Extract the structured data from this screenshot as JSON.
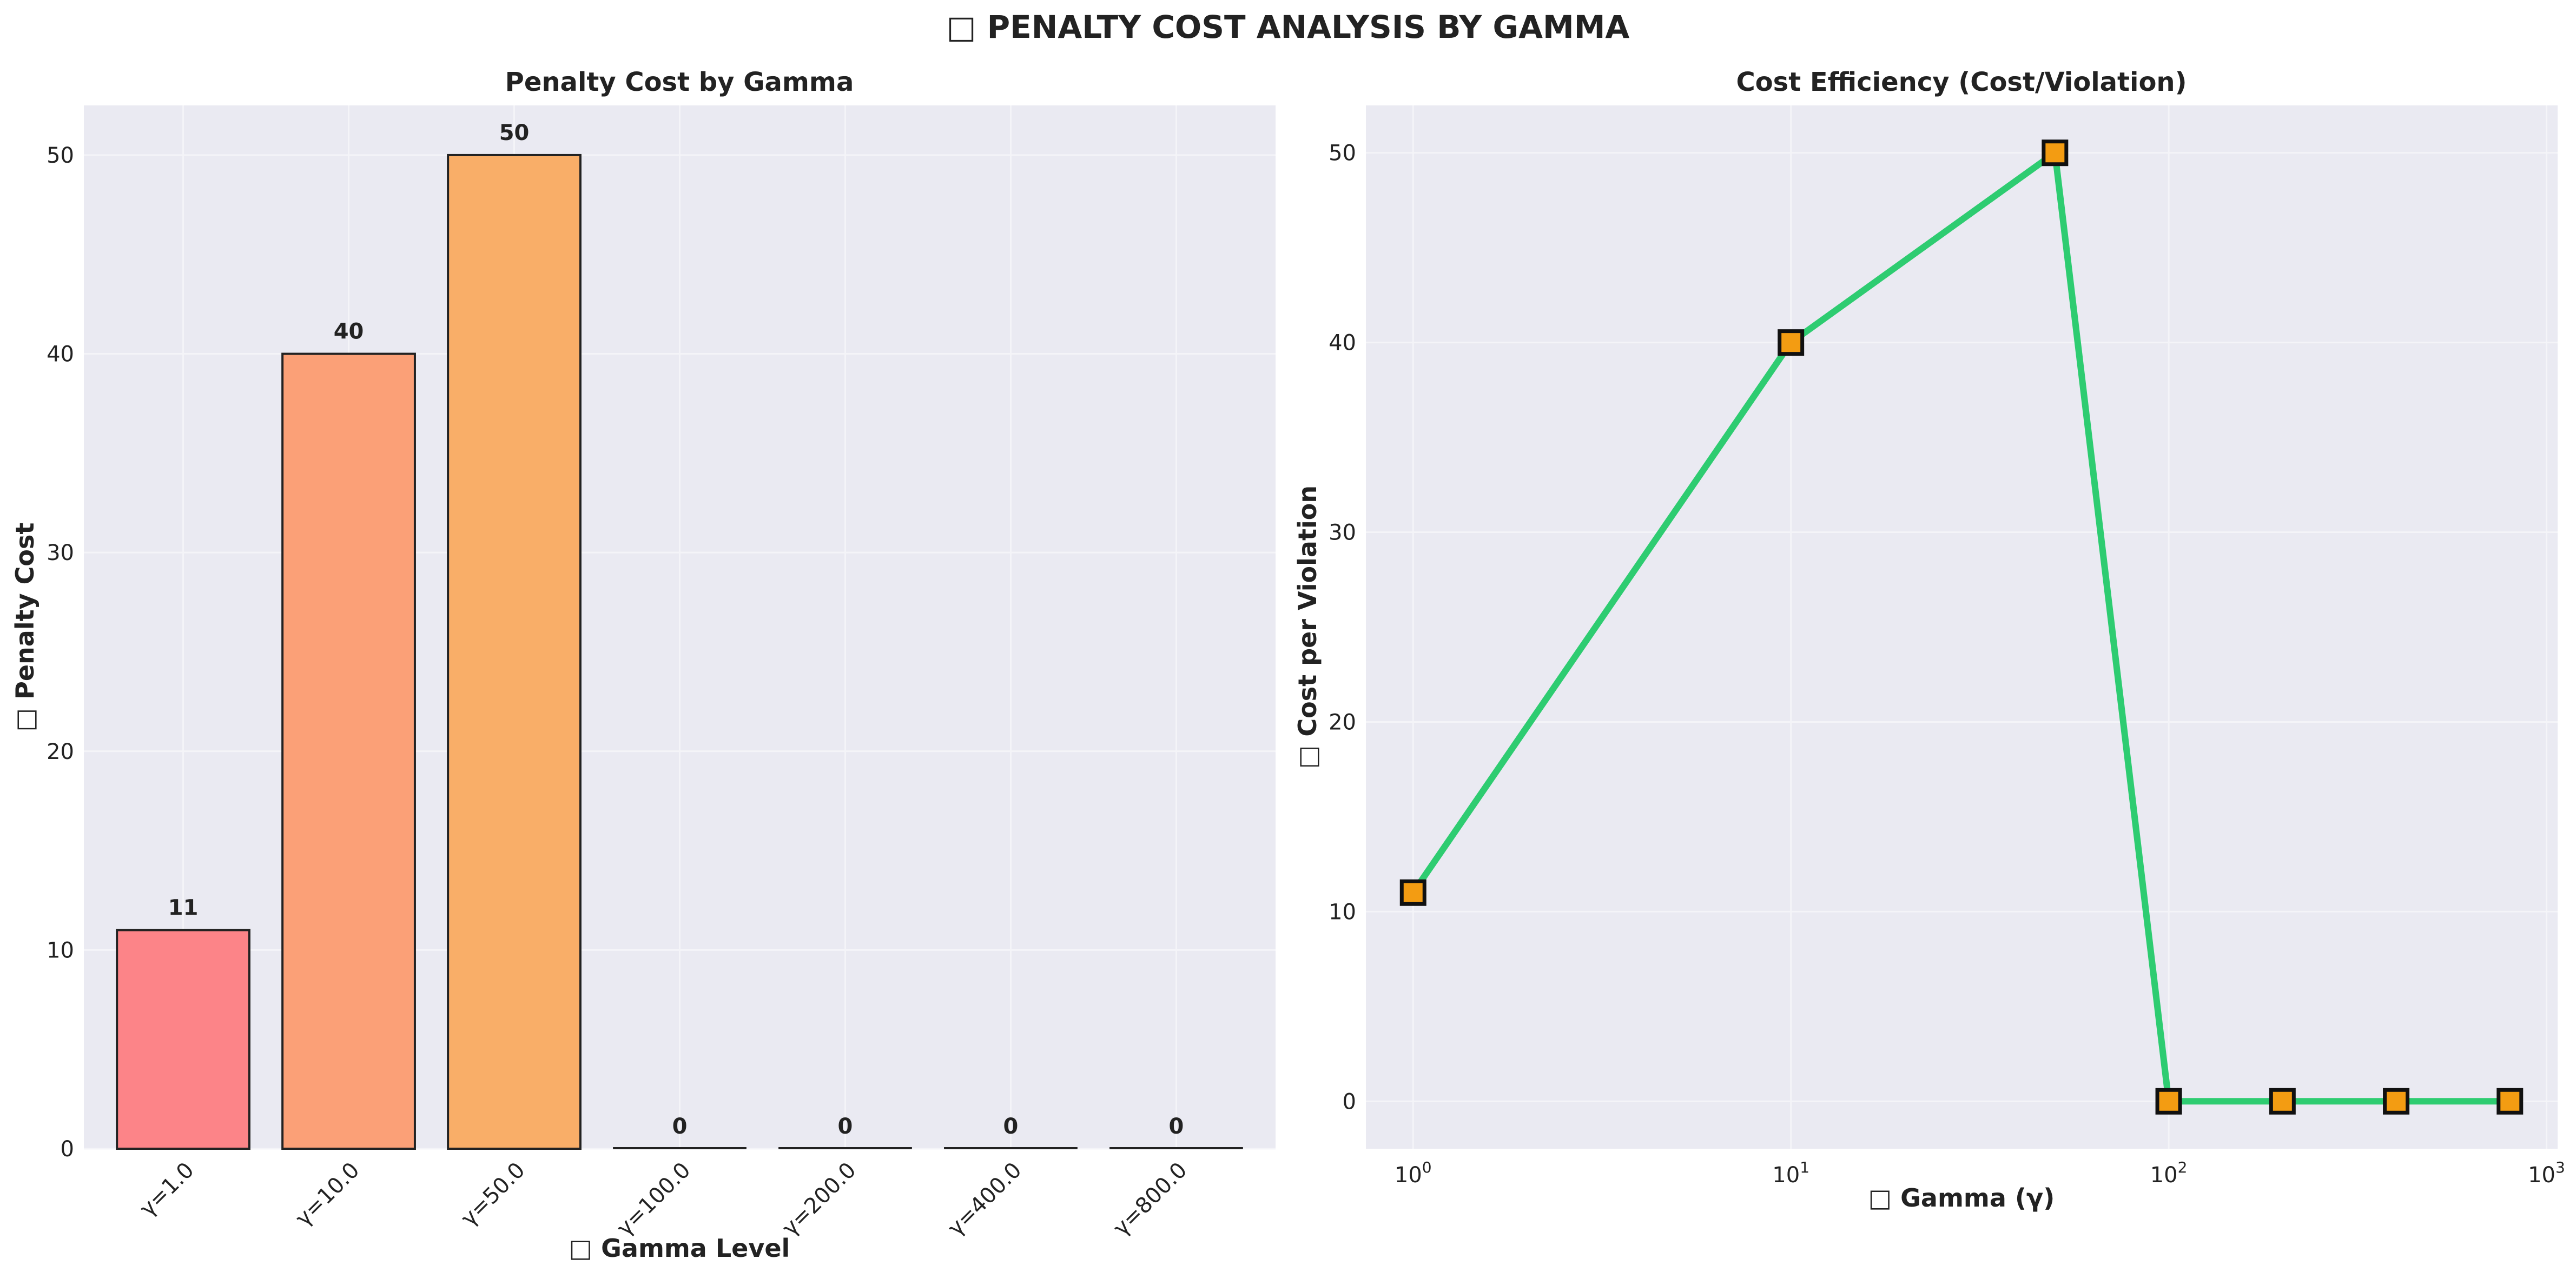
{
  "figure": {
    "title": "□ PENALTY COST ANALYSIS BY GAMMA",
    "background": "#ffffff",
    "panel_background": "#eaeaf2",
    "grid_color": "#f4f4f8",
    "text_color": "#222222"
  },
  "chart_data": [
    {
      "type": "bar",
      "title": "Penalty Cost by Gamma",
      "xlabel": "□ Gamma Level",
      "ylabel": "□ Penalty Cost",
      "categories": [
        "γ=1.0",
        "γ=10.0",
        "γ=50.0",
        "γ=100.0",
        "γ=200.0",
        "γ=400.0",
        "γ=800.0"
      ],
      "values": [
        11,
        40,
        50,
        0,
        0,
        0,
        0
      ],
      "data_labels": [
        "11",
        "40",
        "50",
        "0",
        "0",
        "0",
        "0"
      ],
      "bar_colors": [
        "#fc8488",
        "#fba077",
        "#f9ae68",
        "#f9ae68",
        "#f9ae68",
        "#f9ae68",
        "#f9ae68"
      ],
      "bar_edge_color": "#222222",
      "ylim": [
        0,
        52.5
      ],
      "yticks": [
        0,
        10,
        20,
        30,
        40,
        50
      ],
      "ytick_labels": [
        "0",
        "10",
        "20",
        "30",
        "40",
        "50"
      ],
      "xtick_rotation": 45,
      "grid": true,
      "legend": "none"
    },
    {
      "type": "line",
      "title": "Cost Efficiency (Cost/Violation)",
      "xlabel": "□ Gamma (γ)",
      "ylabel": "□ Cost per Violation",
      "x": [
        1,
        10,
        50,
        100,
        200,
        400,
        800
      ],
      "y": [
        11,
        40,
        50,
        0,
        0,
        0,
        0
      ],
      "xscale": "log",
      "xlim": [
        0.75,
        1070
      ],
      "ylim": [
        -2.5,
        52.5
      ],
      "xticks": [
        1,
        10,
        100,
        1000
      ],
      "xtick_bases": [
        "10",
        "10",
        "10",
        "10"
      ],
      "xtick_exponents": [
        "0",
        "1",
        "2",
        "3"
      ],
      "yticks": [
        0,
        10,
        20,
        30,
        40,
        50
      ],
      "ytick_labels": [
        "0",
        "10",
        "20",
        "30",
        "40",
        "50"
      ],
      "line_color": "#2ecc71",
      "marker": "square",
      "marker_color": "#f39c12",
      "marker_edge_color": "#111111",
      "grid": true,
      "legend": "none"
    }
  ]
}
